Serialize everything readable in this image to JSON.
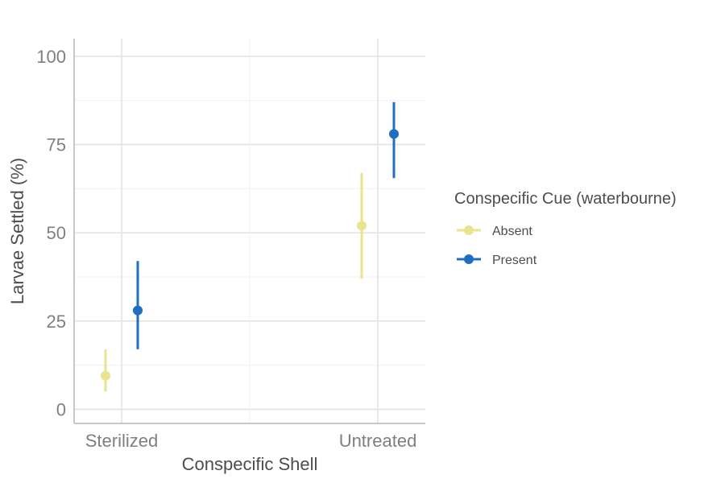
{
  "chart_data": {
    "type": "scatter",
    "xlabel": "Conspecific Shell",
    "ylabel": "Larvae Settled (%)",
    "categories": [
      "Sterilized",
      "Untreated"
    ],
    "ylim": [
      -4,
      105
    ],
    "yticks": [
      0,
      25,
      50,
      75,
      100
    ],
    "ytick_labels": [
      "0",
      "25",
      "50",
      "75",
      "100"
    ],
    "grid": true,
    "legend": {
      "title": "Conspecific Cue (waterbourne)",
      "position": "right"
    },
    "series": [
      {
        "name": "Absent",
        "color": "#ebe38f",
        "points": [
          {
            "category": "Sterilized",
            "y": 9.5,
            "ymin": 5,
            "ymax": 17
          },
          {
            "category": "Untreated",
            "y": 52,
            "ymin": 37,
            "ymax": 67
          }
        ]
      },
      {
        "name": "Present",
        "color": "#1f6fc1",
        "points": [
          {
            "category": "Sterilized",
            "y": 28,
            "ymin": 17,
            "ymax": 42
          },
          {
            "category": "Untreated",
            "y": 78,
            "ymin": 65.5,
            "ymax": 87
          }
        ]
      }
    ]
  }
}
